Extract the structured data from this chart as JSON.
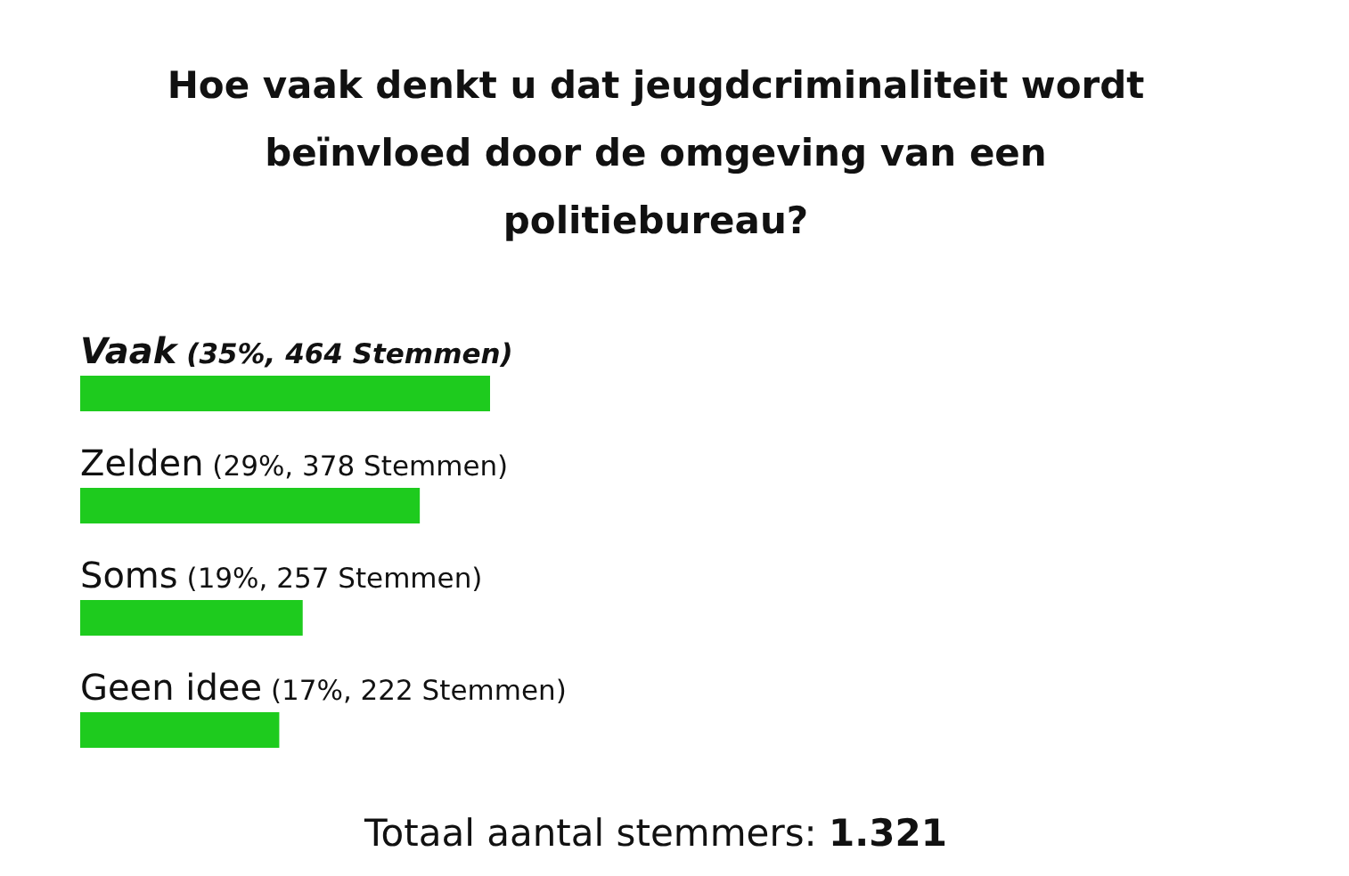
{
  "chart_data": {
    "type": "bar",
    "orientation": "horizontal",
    "title": "Hoe vaak denkt u dat jeugdcriminaliteit wordt beïnvloed door de omgeving van een politiebureau?",
    "categories": [
      "Vaak",
      "Zelden",
      "Soms",
      "Geen idee"
    ],
    "values": [
      35,
      29,
      19,
      17
    ],
    "value_labels": [
      "(35%, 464 Stemmen)",
      "(29%, 378 Stemmen)",
      "(19%, 257 Stemmen)",
      "(17%, 222 Stemmen)"
    ],
    "color": "#1ecb1e",
    "annotations": [
      "Totaal aantal stemmers: 1.321"
    ]
  }
}
